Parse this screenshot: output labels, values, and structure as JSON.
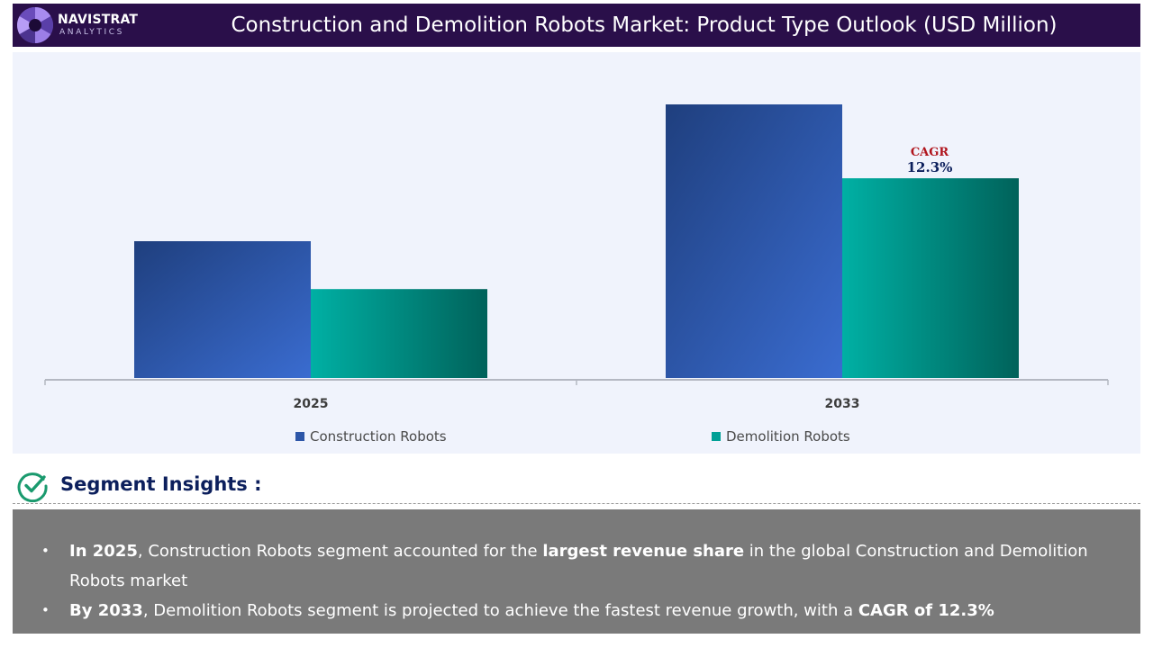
{
  "header": {
    "logo_name": "NAVISTRAT",
    "logo_sub": "ANALYTICS",
    "title": "Construction and Demolition Robots Market: Product Type Outlook (USD Million)"
  },
  "chart_data": {
    "type": "bar",
    "title": "Construction and Demolition Robots Market: Product Type Outlook (USD Million)",
    "xlabel": "",
    "ylabel": "",
    "categories": [
      "2025",
      "2033"
    ],
    "series": [
      {
        "name": "Construction Robots",
        "values": [
          100,
          200
        ]
      },
      {
        "name": "Demolition Robots",
        "values": [
          65,
          146
        ]
      }
    ],
    "ylim": [
      0,
      225
    ],
    "grid": false,
    "legend": "bottom",
    "annotation": {
      "label": "CAGR",
      "value": "12.3%"
    },
    "colors": {
      "Construction Robots": [
        "#1f3f7e",
        "#3a6cd0"
      ],
      "Demolition Robots": [
        "#00b0a4",
        "#00625a"
      ],
      "legend_construction": "#2d56a8",
      "legend_demolition": "#00a096"
    }
  },
  "insights": {
    "title": "Segment Insights :",
    "items": [
      {
        "lead": "In 2025",
        "text1": ", Construction Robots  segment accounted for the ",
        "bold": "largest revenue share",
        "text2": " in the global Construction and Demolition Robots market"
      },
      {
        "lead": "By 2033",
        "text1": ", Demolition Robots  segment is projected to achieve the fastest revenue growth, with a ",
        "bold": "CAGR of 12.3%",
        "text2": ""
      }
    ]
  }
}
